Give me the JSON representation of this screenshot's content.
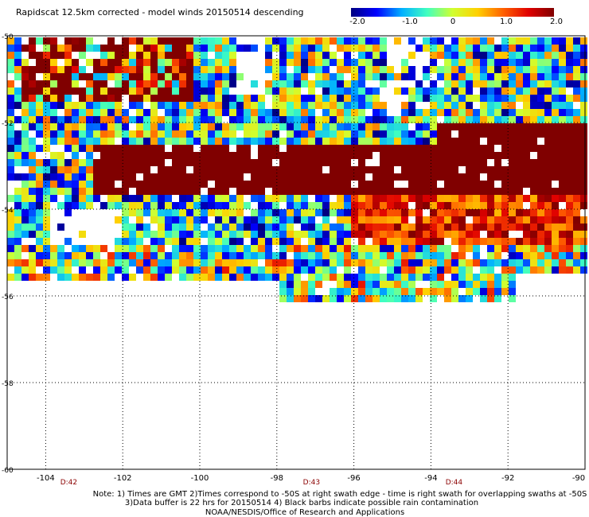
{
  "title": "Rapidscat 12.5km corrected - model winds 20150514 descending",
  "colorbar": {
    "labels": [
      "-2.0",
      "-1.0",
      "0",
      "1.0",
      "2.0"
    ],
    "values": [
      -2.0,
      -1.0,
      0,
      1.0,
      2.0
    ],
    "stops": [
      "#000080",
      "#0000ff",
      "#00b0ff",
      "#40ffc0",
      "#d0ff30",
      "#ffd000",
      "#ff6000",
      "#e00000",
      "#800000"
    ]
  },
  "chart_data": {
    "type": "heatmap",
    "title": "Rapidscat 12.5km corrected - model winds 20150514 descending",
    "xlim": [
      -105,
      -90
    ],
    "ylim": [
      -60,
      -50
    ],
    "x_ticks": [
      -104,
      -102,
      -100,
      -98,
      -96,
      -94,
      -92,
      -90
    ],
    "x_tick_labels": [
      "-104",
      "-102",
      "-100",
      "-98",
      "-96",
      "-94",
      "-92",
      "-90"
    ],
    "y_ticks": [
      -50,
      -52,
      -54,
      -56,
      -58,
      -60
    ],
    "y_tick_labels": [
      "-50",
      "-52",
      "-54",
      "-56",
      "-58",
      "-60"
    ],
    "value_range": [
      -2.0,
      2.0
    ],
    "grid": true,
    "swath_times": [
      {
        "label": "D:42",
        "lon": -103.4
      },
      {
        "label": "D:43",
        "lon": -97.1
      },
      {
        "label": "D:44",
        "lon": -93.4
      }
    ],
    "notes": [
      "Note: 1) Times are GMT 2)Times correspond to -50S at right swath edge - time is right swath for overlapping swaths at -50S",
      "3)Data buffer is 22 hrs for 20150514 4) Black barbs indicate possible rain contamination",
      "NOAA/NESDIS/Office of Research and Applications"
    ]
  }
}
